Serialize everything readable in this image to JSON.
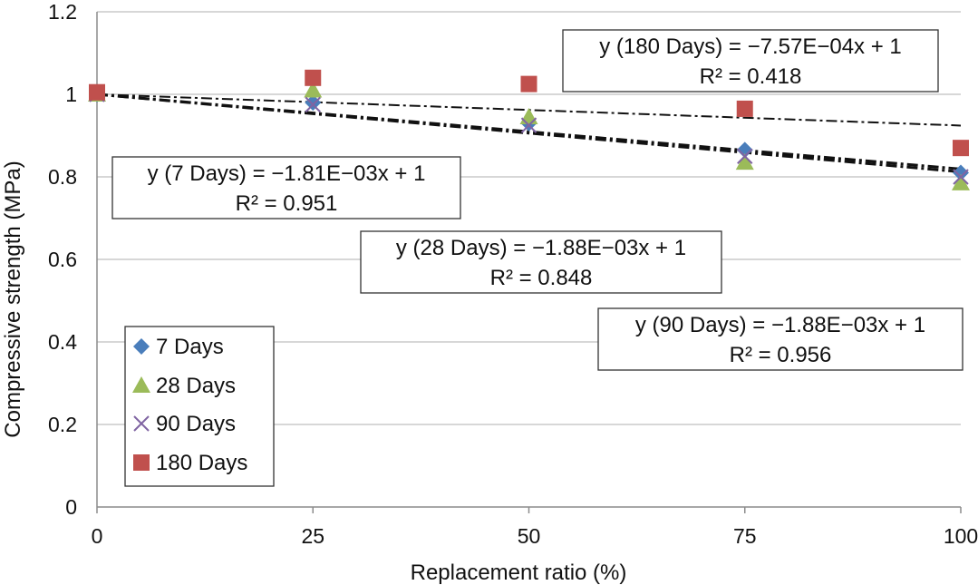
{
  "chart_data": {
    "type": "scatter",
    "xlabel": "Replacement ratio (%)",
    "ylabel": "Compressive strength (MPa)",
    "xlim": [
      0,
      100
    ],
    "ylim": [
      0,
      1.2
    ],
    "x_ticks": [
      "0",
      "25",
      "50",
      "75",
      "100"
    ],
    "y_ticks": [
      "0",
      "0.2",
      "0.4",
      "0.6",
      "0.8",
      "1",
      "1.2"
    ],
    "grid": "horizontal",
    "legend_position": "bottom-left",
    "x": [
      0,
      25,
      50,
      75,
      100
    ],
    "series": [
      {
        "name": "7 Days",
        "marker": "diamond",
        "color": "#4a7ebb",
        "values": [
          1.0,
          0.98,
          0.93,
          0.865,
          0.81
        ]
      },
      {
        "name": "28 Days",
        "marker": "triangle",
        "color": "#9bbb59",
        "values": [
          1.0,
          1.01,
          0.945,
          0.835,
          0.785
        ]
      },
      {
        "name": "90 Days",
        "marker": "cross",
        "color": "#8064a2",
        "values": [
          1.0,
          0.975,
          0.925,
          0.85,
          0.8
        ]
      },
      {
        "name": "180 Days",
        "marker": "square",
        "color": "#c0504d",
        "values": [
          1.005,
          1.04,
          1.025,
          0.965,
          0.87
        ]
      }
    ],
    "trendlines": [
      {
        "slope": -0.00181,
        "intercept": 1
      },
      {
        "slope": -0.00188,
        "intercept": 1
      },
      {
        "slope": -0.000757,
        "intercept": 1
      }
    ],
    "annotations": [
      {
        "line1": "y (180 Days) = −7.57E−04x + 1",
        "line2": "R² = 0.418"
      },
      {
        "line1": "y (7 Days) = −1.81E−03x + 1",
        "line2": "R² = 0.951"
      },
      {
        "line1": "y (28 Days) = −1.88E−03x + 1",
        "line2": "R² = 0.848"
      },
      {
        "line1": "y (90 Days) = −1.88E−03x + 1",
        "line2": "R² = 0.956"
      }
    ]
  }
}
